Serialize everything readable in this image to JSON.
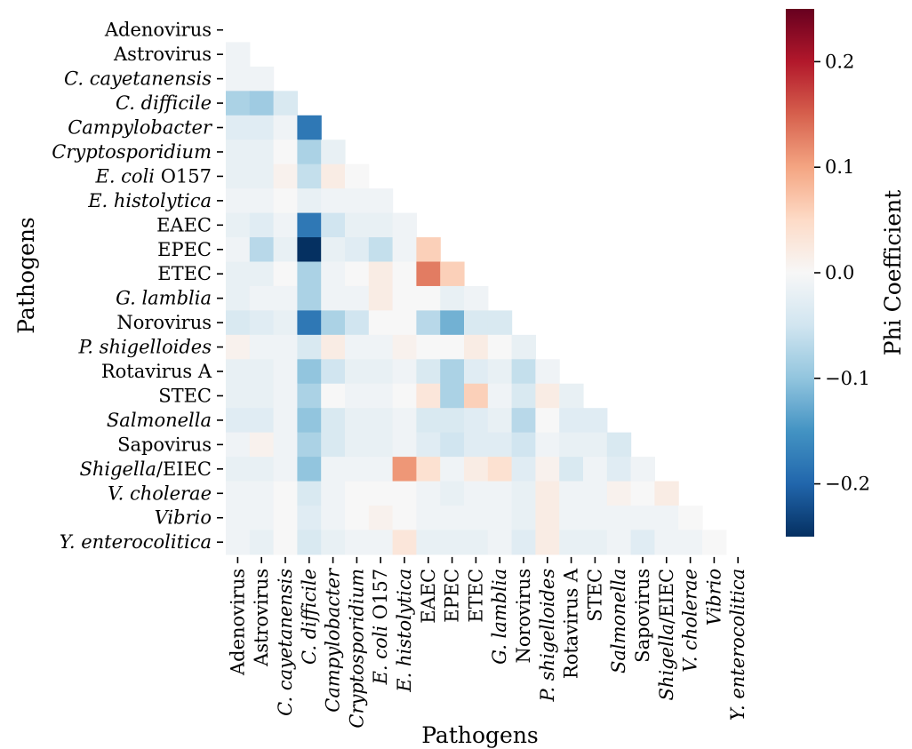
{
  "chart_data": {
    "type": "heatmap",
    "title": "",
    "xlabel": "Pathogens",
    "ylabel": "Pathogens",
    "colorbar_label": "Phi Coefficient",
    "colormap": "RdBu_r",
    "vmin": -0.25,
    "vmax": 0.25,
    "colorbar_ticks": [
      0.2,
      0.1,
      0.0,
      -0.1,
      -0.2
    ],
    "colorbar_tick_labels": [
      "0.2",
      "0.1",
      "0.0",
      "−0.1",
      "−0.2"
    ],
    "mask": "upper triangle including diagonal",
    "categories": [
      {
        "text": "Adenovirus",
        "parts": [
          {
            "t": "Adenovirus",
            "i": false
          }
        ]
      },
      {
        "text": "Astrovirus",
        "parts": [
          {
            "t": "Astrovirus",
            "i": false
          }
        ]
      },
      {
        "text": "C. cayetanensis",
        "parts": [
          {
            "t": "C. cayetanensis",
            "i": true
          }
        ]
      },
      {
        "text": "C. difficile",
        "parts": [
          {
            "t": "C. difficile",
            "i": true
          }
        ]
      },
      {
        "text": "Campylobacter",
        "parts": [
          {
            "t": "Campylobacter",
            "i": true
          }
        ]
      },
      {
        "text": "Cryptosporidium",
        "parts": [
          {
            "t": "Cryptosporidium",
            "i": true
          }
        ]
      },
      {
        "text": "E. coli O157",
        "parts": [
          {
            "t": "E. coli",
            "i": true
          },
          {
            "t": " O157",
            "i": false
          }
        ]
      },
      {
        "text": "E. histolytica",
        "parts": [
          {
            "t": "E. histolytica",
            "i": true
          }
        ]
      },
      {
        "text": "EAEC",
        "parts": [
          {
            "t": "EAEC",
            "i": false
          }
        ]
      },
      {
        "text": "EPEC",
        "parts": [
          {
            "t": "EPEC",
            "i": false
          }
        ]
      },
      {
        "text": "ETEC",
        "parts": [
          {
            "t": "ETEC",
            "i": false
          }
        ]
      },
      {
        "text": "G. lamblia",
        "parts": [
          {
            "t": "G. lamblia",
            "i": true
          }
        ]
      },
      {
        "text": "Norovirus",
        "parts": [
          {
            "t": "Norovirus",
            "i": false
          }
        ]
      },
      {
        "text": "P. shigelloides",
        "parts": [
          {
            "t": "P. shigelloides",
            "i": true
          }
        ]
      },
      {
        "text": "Rotavirus A",
        "parts": [
          {
            "t": "Rotavirus A",
            "i": false
          }
        ]
      },
      {
        "text": "STEC",
        "parts": [
          {
            "t": "STEC",
            "i": false
          }
        ]
      },
      {
        "text": "Salmonella",
        "parts": [
          {
            "t": "Salmonella",
            "i": true
          }
        ]
      },
      {
        "text": "Sapovirus",
        "parts": [
          {
            "t": "Sapovirus",
            "i": false
          }
        ]
      },
      {
        "text": "Shigella/EIEC",
        "parts": [
          {
            "t": "Shigella",
            "i": true
          },
          {
            "t": "/EIEC",
            "i": false
          }
        ]
      },
      {
        "text": "V. cholerae",
        "parts": [
          {
            "t": "V. cholerae",
            "i": true
          }
        ]
      },
      {
        "text": "Vibrio",
        "parts": [
          {
            "t": "Vibrio",
            "i": true
          }
        ]
      },
      {
        "text": "Y. enterocolitica",
        "parts": [
          {
            "t": "Y. enterocolitica",
            "i": true
          }
        ]
      }
    ],
    "matrix": [
      [],
      [
        -0.01
      ],
      [
        -0.01,
        -0.01
      ],
      [
        -0.08,
        -0.09,
        -0.04
      ],
      [
        -0.03,
        -0.03,
        -0.01,
        -0.18
      ],
      [
        -0.02,
        -0.02,
        0.0,
        -0.08,
        -0.02
      ],
      [
        -0.02,
        -0.02,
        0.01,
        -0.06,
        0.02,
        0.0
      ],
      [
        -0.01,
        -0.01,
        0.0,
        -0.02,
        -0.01,
        -0.01,
        -0.01
      ],
      [
        -0.02,
        -0.03,
        -0.01,
        -0.18,
        -0.05,
        -0.02,
        -0.02,
        -0.01
      ],
      [
        -0.01,
        -0.07,
        -0.02,
        -0.25,
        -0.02,
        -0.03,
        -0.06,
        -0.01,
        0.06
      ],
      [
        -0.02,
        -0.02,
        0.0,
        -0.08,
        -0.01,
        0.0,
        0.02,
        0.0,
        0.13,
        0.06
      ],
      [
        -0.02,
        -0.01,
        -0.01,
        -0.08,
        -0.01,
        -0.01,
        0.02,
        0.0,
        0.0,
        -0.02,
        -0.01
      ],
      [
        -0.04,
        -0.03,
        -0.02,
        -0.18,
        -0.08,
        -0.05,
        0.0,
        0.0,
        -0.07,
        -0.12,
        -0.04,
        -0.04
      ],
      [
        0.01,
        -0.01,
        -0.01,
        -0.04,
        0.02,
        -0.01,
        -0.01,
        0.01,
        0.0,
        0.0,
        0.02,
        0.0,
        -0.02
      ],
      [
        -0.02,
        -0.02,
        -0.01,
        -0.1,
        -0.05,
        -0.02,
        -0.02,
        -0.01,
        -0.04,
        -0.08,
        -0.03,
        -0.02,
        -0.06,
        -0.01
      ],
      [
        -0.02,
        -0.02,
        -0.01,
        -0.08,
        0.0,
        -0.01,
        -0.01,
        0.0,
        0.03,
        -0.08,
        0.06,
        -0.01,
        -0.04,
        0.02,
        -0.02
      ],
      [
        -0.03,
        -0.03,
        -0.01,
        -0.1,
        -0.04,
        -0.02,
        -0.02,
        -0.01,
        -0.04,
        -0.04,
        -0.03,
        -0.02,
        -0.07,
        0.0,
        -0.03,
        -0.03
      ],
      [
        -0.01,
        0.01,
        -0.01,
        -0.08,
        -0.04,
        -0.02,
        -0.02,
        -0.01,
        -0.03,
        -0.05,
        -0.03,
        -0.03,
        -0.05,
        -0.01,
        -0.02,
        -0.02,
        -0.04
      ],
      [
        -0.02,
        -0.02,
        -0.01,
        -0.1,
        -0.01,
        -0.01,
        -0.01,
        0.11,
        0.04,
        -0.01,
        0.02,
        0.04,
        -0.03,
        0.01,
        -0.04,
        -0.01,
        -0.03,
        -0.01
      ],
      [
        -0.01,
        -0.01,
        0.0,
        -0.04,
        -0.01,
        0.0,
        0.0,
        0.0,
        -0.01,
        -0.02,
        -0.01,
        -0.01,
        -0.02,
        0.02,
        -0.01,
        -0.01,
        0.01,
        0.0,
        0.02
      ],
      [
        -0.01,
        -0.01,
        0.0,
        -0.03,
        -0.01,
        0.0,
        0.01,
        0.0,
        -0.01,
        -0.01,
        -0.01,
        -0.01,
        -0.02,
        0.02,
        -0.01,
        -0.01,
        -0.01,
        -0.01,
        -0.01,
        0.0
      ],
      [
        -0.01,
        -0.02,
        0.0,
        -0.04,
        -0.02,
        -0.01,
        -0.01,
        0.03,
        -0.02,
        -0.02,
        -0.02,
        -0.01,
        -0.03,
        0.02,
        -0.02,
        -0.02,
        -0.01,
        -0.03,
        -0.01,
        -0.01,
        0.0
      ]
    ]
  }
}
